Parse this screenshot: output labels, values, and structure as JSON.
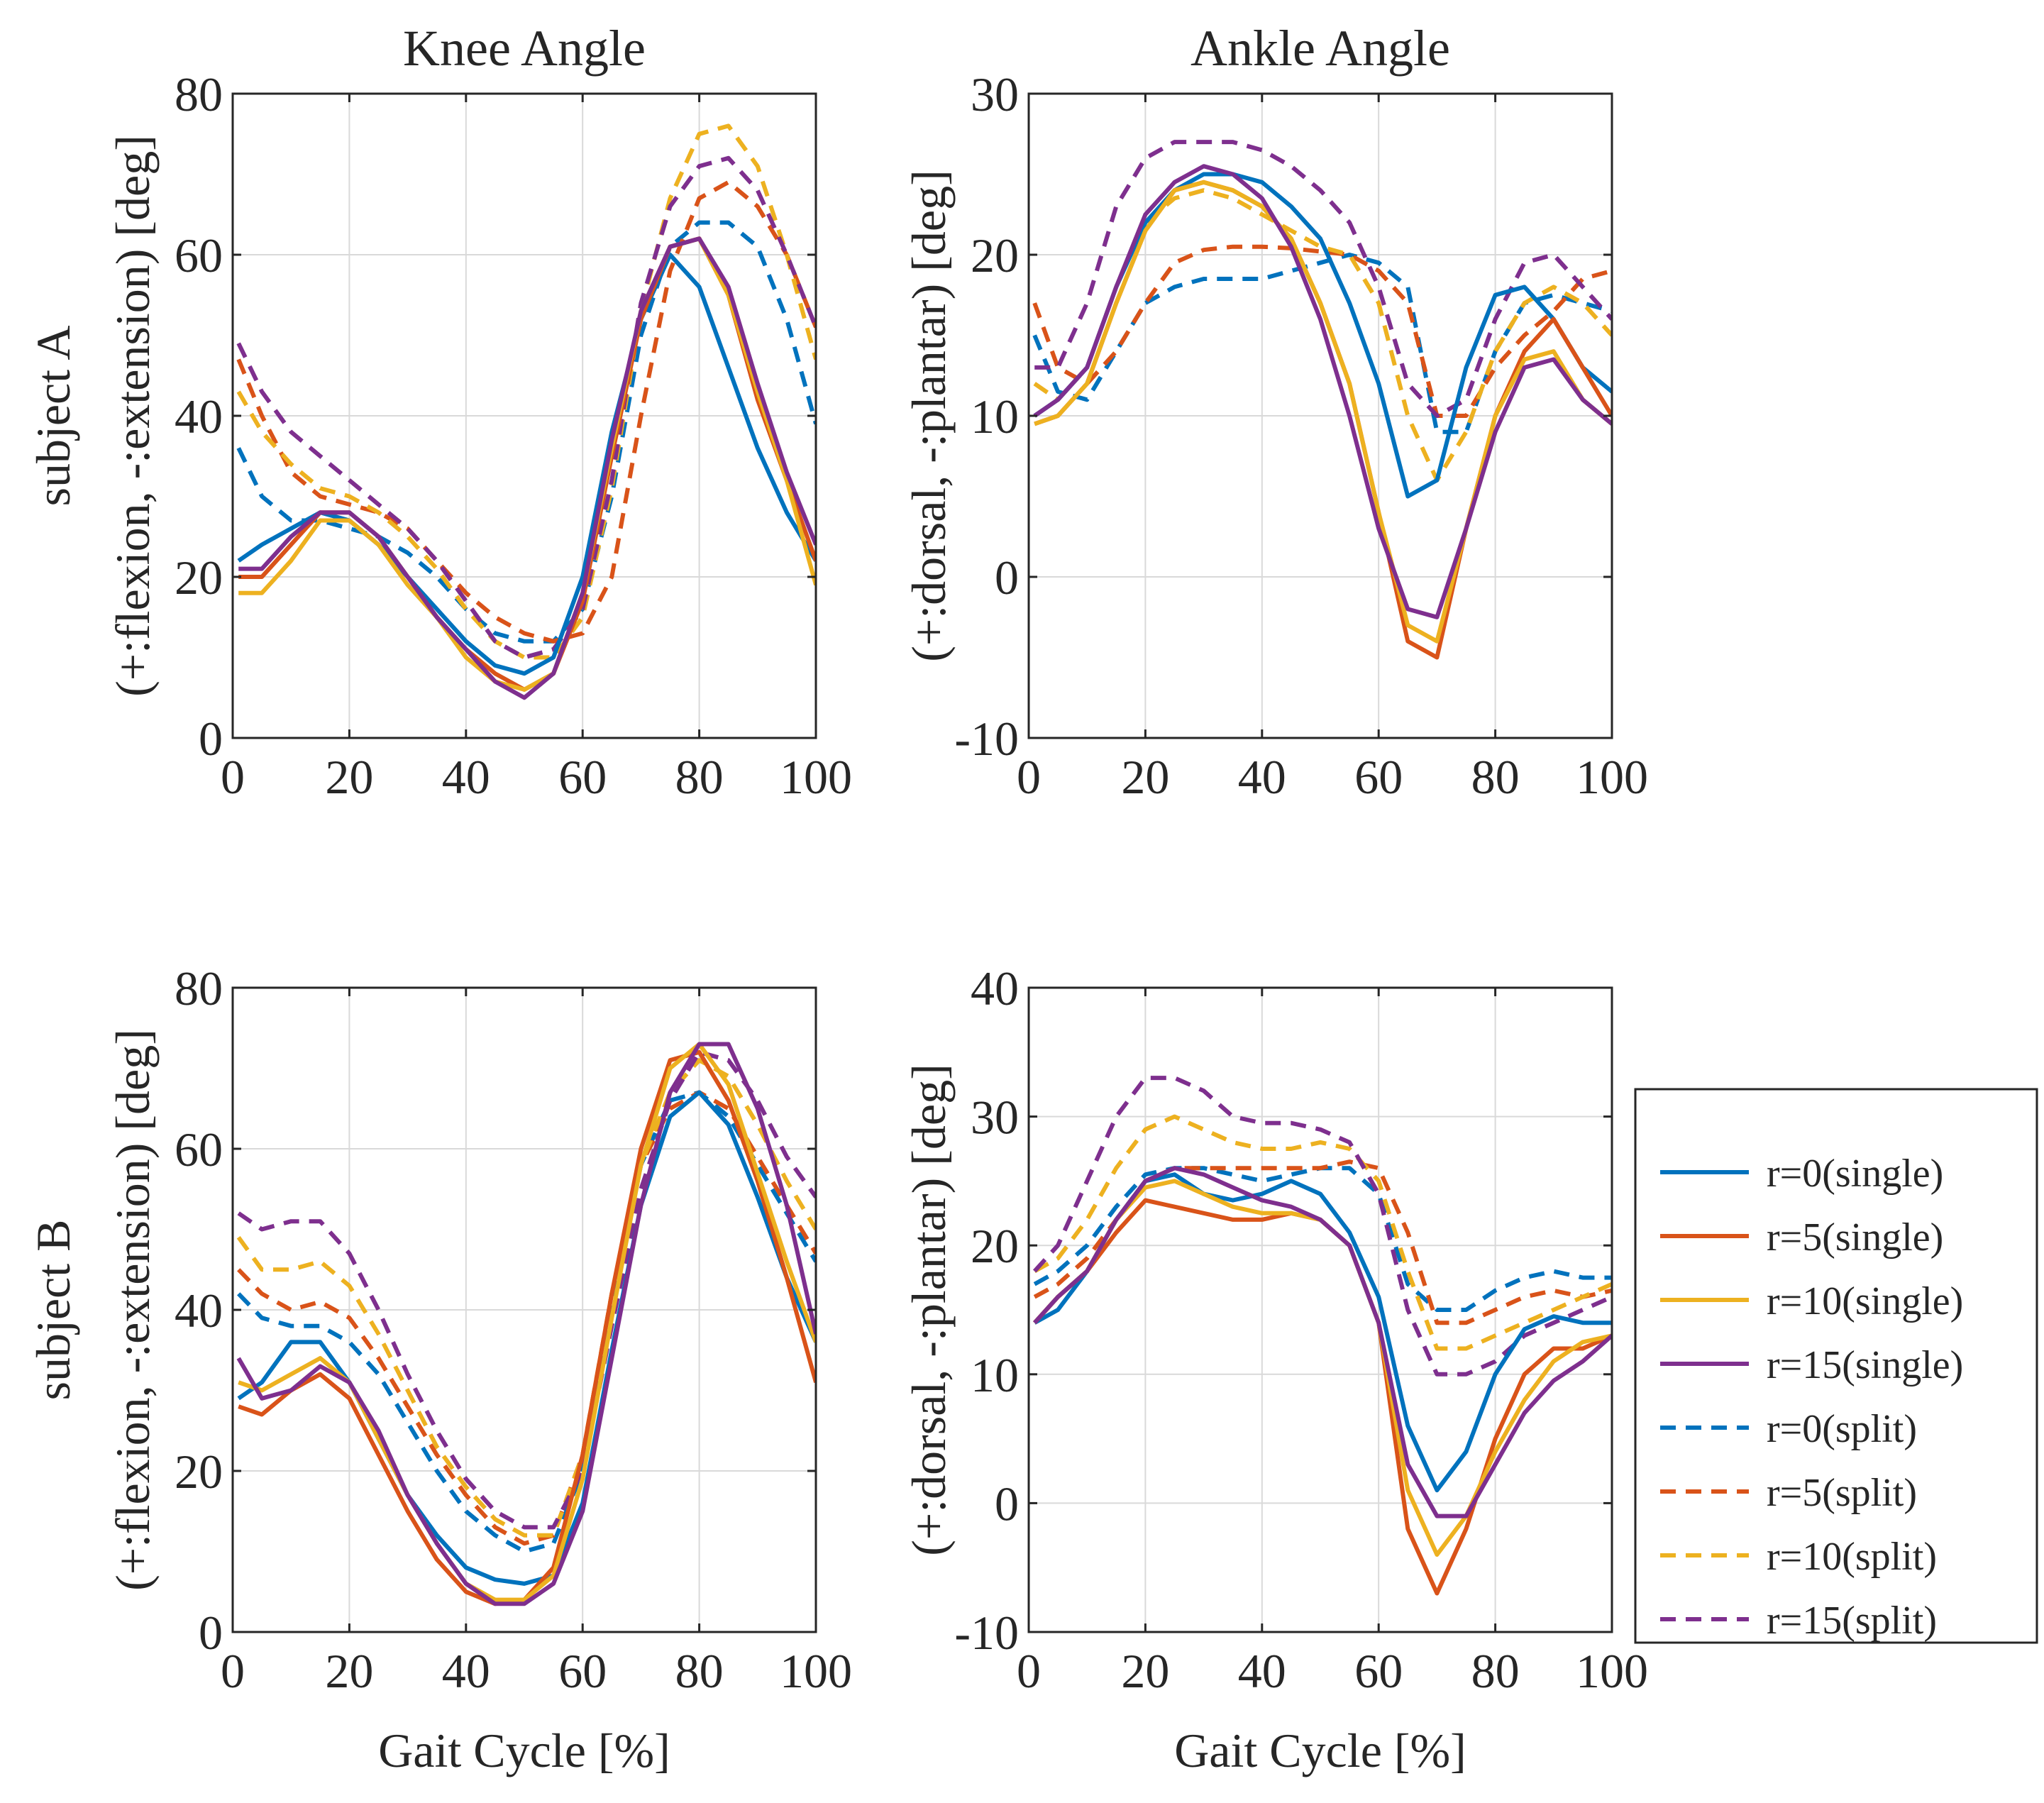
{
  "colors": {
    "r0": "#0072BD",
    "r5": "#D95319",
    "r10": "#EDB120",
    "r15": "#7E2F8E",
    "grid": "#d9d9d9",
    "axis": "#262626"
  },
  "legend": {
    "placement": "right of bottom-right panel",
    "entries": [
      {
        "label": "r=0(single)",
        "color": "#0072BD",
        "style": "solid"
      },
      {
        "label": "r=5(single)",
        "color": "#D95319",
        "style": "solid"
      },
      {
        "label": "r=10(single)",
        "color": "#EDB120",
        "style": "solid"
      },
      {
        "label": "r=15(single)",
        "color": "#7E2F8E",
        "style": "solid"
      },
      {
        "label": "r=0(split)",
        "color": "#0072BD",
        "style": "dashed"
      },
      {
        "label": "r=5(split)",
        "color": "#D95319",
        "style": "dashed"
      },
      {
        "label": "r=10(split)",
        "color": "#EDB120",
        "style": "dashed"
      },
      {
        "label": "r=15(split)",
        "color": "#7E2F8E",
        "style": "dashed"
      }
    ]
  },
  "chart_data": [
    {
      "type": "line",
      "title": "Knee Angle",
      "row_label": "subject A",
      "ylabel": "(+:flexion, -:extension) [deg]",
      "xlabel": "",
      "xlim": [
        0,
        100
      ],
      "ylim": [
        0,
        80
      ],
      "xticks": [
        0,
        20,
        40,
        60,
        80,
        100
      ],
      "yticks": [
        0,
        20,
        40,
        60,
        80
      ],
      "grid": true,
      "x": [
        1,
        5,
        10,
        15,
        20,
        25,
        30,
        35,
        40,
        45,
        50,
        55,
        60,
        65,
        70,
        75,
        80,
        85,
        90,
        95,
        100
      ],
      "series": [
        {
          "name": "r=0(single)",
          "style": "solid",
          "values": [
            22,
            24,
            26,
            28,
            27,
            24,
            20,
            16,
            12,
            9,
            8,
            10,
            20,
            38,
            52,
            60,
            56,
            46,
            36,
            28,
            22
          ]
        },
        {
          "name": "r=5(single)",
          "style": "solid",
          "values": [
            20,
            20,
            24,
            28,
            28,
            25,
            20,
            15,
            11,
            8,
            6,
            8,
            17,
            35,
            52,
            61,
            62,
            55,
            42,
            32,
            22
          ]
        },
        {
          "name": "r=10(single)",
          "style": "solid",
          "values": [
            18,
            18,
            22,
            27,
            27,
            24,
            19,
            15,
            10,
            7,
            6,
            8,
            18,
            36,
            53,
            61,
            62,
            55,
            43,
            32,
            19
          ]
        },
        {
          "name": "r=15(single)",
          "style": "solid",
          "values": [
            21,
            21,
            25,
            28,
            28,
            25,
            20,
            15,
            11,
            7,
            5,
            8,
            18,
            37,
            53,
            61,
            62,
            56,
            44,
            33,
            24
          ]
        },
        {
          "name": "r=0(split)",
          "style": "dashed",
          "values": [
            36,
            30,
            27,
            27,
            26,
            25,
            23,
            20,
            16,
            13,
            12,
            12,
            16,
            30,
            50,
            61,
            64,
            64,
            61,
            52,
            39
          ]
        },
        {
          "name": "r=5(split)",
          "style": "dashed",
          "values": [
            47,
            40,
            33,
            30,
            29,
            28,
            26,
            22,
            18,
            15,
            13,
            12,
            13,
            20,
            40,
            58,
            67,
            69,
            66,
            60,
            51
          ]
        },
        {
          "name": "r=10(split)",
          "style": "dashed",
          "values": [
            43,
            38,
            34,
            31,
            30,
            28,
            25,
            21,
            16,
            12,
            10,
            10,
            15,
            31,
            53,
            67,
            75,
            76,
            71,
            60,
            47
          ]
        },
        {
          "name": "r=15(split)",
          "style": "dashed",
          "values": [
            49,
            43,
            38,
            35,
            32,
            29,
            26,
            22,
            17,
            12,
            10,
            11,
            16,
            32,
            54,
            66,
            71,
            72,
            68,
            60,
            51
          ]
        }
      ]
    },
    {
      "type": "line",
      "title": "Ankle Angle",
      "row_label": "",
      "ylabel": "(+:dorsal, -:plantar) [deg]",
      "xlabel": "",
      "xlim": [
        0,
        100
      ],
      "ylim": [
        -10,
        30
      ],
      "xticks": [
        0,
        20,
        40,
        60,
        80,
        100
      ],
      "yticks": [
        -10,
        0,
        10,
        20,
        30
      ],
      "grid": true,
      "x": [
        1,
        5,
        10,
        15,
        20,
        25,
        30,
        35,
        40,
        45,
        50,
        55,
        60,
        65,
        70,
        75,
        80,
        85,
        90,
        95,
        100
      ],
      "series": [
        {
          "name": "r=0(single)",
          "style": "solid",
          "values": [
            10,
            11,
            13,
            18,
            22,
            24,
            25,
            25,
            24.5,
            23,
            21,
            17,
            12,
            5,
            6,
            13,
            17.5,
            18,
            16,
            13,
            11.5
          ]
        },
        {
          "name": "r=5(single)",
          "style": "solid",
          "values": [
            9.5,
            10,
            12,
            17,
            21.5,
            24,
            24.5,
            24,
            23,
            21,
            17,
            12,
            4,
            -4,
            -5,
            3,
            10,
            14,
            16,
            13,
            10
          ]
        },
        {
          "name": "r=10(single)",
          "style": "solid",
          "values": [
            9.5,
            10,
            12,
            17,
            21.5,
            24,
            24.5,
            24,
            23,
            21,
            17,
            12,
            4,
            -3,
            -4,
            3,
            10,
            13.5,
            14,
            11,
            9.5
          ]
        },
        {
          "name": "r=15(single)",
          "style": "solid",
          "values": [
            10,
            11,
            13,
            18,
            22.5,
            24.5,
            25.5,
            25,
            23.5,
            20.5,
            16,
            10,
            3,
            -2,
            -2.5,
            3,
            9,
            13,
            13.5,
            11,
            9.5
          ]
        },
        {
          "name": "r=0(split)",
          "style": "dashed",
          "values": [
            15,
            11.5,
            11,
            14,
            17,
            18,
            18.5,
            18.5,
            18.5,
            19,
            19.5,
            20,
            19.5,
            18,
            9,
            9,
            14,
            17,
            17.5,
            17,
            16.5
          ]
        },
        {
          "name": "r=5(split)",
          "style": "dashed",
          "values": [
            17,
            13,
            12,
            14,
            17,
            19.5,
            20.3,
            20.5,
            20.5,
            20.4,
            20.2,
            20,
            19,
            17,
            10,
            10,
            13,
            15,
            16.5,
            18.5,
            19
          ]
        },
        {
          "name": "r=10(split)",
          "style": "dashed",
          "values": [
            12,
            11,
            13,
            18,
            22,
            23.5,
            24,
            23.5,
            22.5,
            21.5,
            20.5,
            20,
            17,
            10,
            6,
            9,
            14,
            17,
            18,
            17,
            15
          ]
        },
        {
          "name": "r=15(split)",
          "style": "dashed",
          "values": [
            13,
            13,
            17,
            23,
            26,
            27,
            27,
            27,
            26.5,
            25.5,
            24,
            22,
            18,
            12,
            10,
            11,
            16,
            19.5,
            20,
            18,
            16
          ]
        }
      ]
    },
    {
      "type": "line",
      "title": "",
      "row_label": "subject B",
      "ylabel": "(+:flexion, -:extension) [deg]",
      "xlabel": "Gait Cycle [%]",
      "xlim": [
        0,
        100
      ],
      "ylim": [
        0,
        80
      ],
      "xticks": [
        0,
        20,
        40,
        60,
        80,
        100
      ],
      "yticks": [
        0,
        20,
        40,
        60,
        80
      ],
      "grid": true,
      "x": [
        1,
        5,
        10,
        15,
        20,
        25,
        30,
        35,
        40,
        45,
        50,
        55,
        60,
        65,
        70,
        75,
        80,
        85,
        90,
        95,
        100
      ],
      "series": [
        {
          "name": "r=0(single)",
          "style": "solid",
          "values": [
            29,
            31,
            36,
            36,
            31,
            24,
            17,
            12,
            8,
            6.5,
            6,
            7,
            16,
            35,
            53,
            64,
            67,
            63,
            54,
            44,
            36
          ]
        },
        {
          "name": "r=5(single)",
          "style": "solid",
          "values": [
            28,
            27,
            30,
            32,
            29,
            22,
            15,
            9,
            5,
            3.5,
            4,
            8,
            22,
            42,
            60,
            71,
            72,
            66,
            56,
            44,
            31
          ]
        },
        {
          "name": "r=10(single)",
          "style": "solid",
          "values": [
            31,
            30,
            32,
            34,
            31,
            24,
            17,
            11,
            6,
            4,
            4,
            7,
            19,
            39,
            58,
            70,
            73,
            68,
            57,
            46,
            36
          ]
        },
        {
          "name": "r=15(single)",
          "style": "solid",
          "values": [
            34,
            29,
            30,
            33,
            31,
            25,
            17,
            11,
            6,
            3.5,
            3.5,
            6,
            15,
            34,
            53,
            67,
            73,
            73,
            65,
            53,
            37
          ]
        },
        {
          "name": "r=0(split)",
          "style": "dashed",
          "values": [
            42,
            39,
            38,
            38,
            36,
            32,
            26,
            20,
            15,
            12,
            10,
            11,
            20,
            40,
            58,
            66,
            67,
            64,
            58,
            52,
            46
          ]
        },
        {
          "name": "r=5(split)",
          "style": "dashed",
          "values": [
            45,
            42,
            40,
            41,
            39,
            34,
            28,
            22,
            17,
            13,
            11,
            12,
            22,
            42,
            58,
            65,
            67,
            65,
            59,
            53,
            47
          ]
        },
        {
          "name": "r=10(split)",
          "style": "dashed",
          "values": [
            49,
            45,
            45,
            46,
            43,
            37,
            30,
            23,
            18,
            14,
            12,
            12,
            22,
            42,
            58,
            67,
            71,
            69,
            63,
            56,
            50
          ]
        },
        {
          "name": "r=15(split)",
          "style": "dashed",
          "values": [
            52,
            50,
            51,
            51,
            47,
            40,
            32,
            25,
            19,
            15,
            13,
            13,
            20,
            38,
            55,
            66,
            72,
            71,
            66,
            59,
            54
          ]
        }
      ]
    },
    {
      "type": "line",
      "title": "",
      "row_label": "",
      "ylabel": "(+:dorsal, -:plantar) [deg]",
      "xlabel": "Gait Cycle [%]",
      "xlim": [
        0,
        100
      ],
      "ylim": [
        -10,
        40
      ],
      "xticks": [
        0,
        20,
        40,
        60,
        80,
        100
      ],
      "yticks": [
        -10,
        0,
        10,
        20,
        30,
        40
      ],
      "grid": true,
      "x": [
        1,
        5,
        10,
        15,
        20,
        25,
        30,
        35,
        40,
        45,
        50,
        55,
        60,
        65,
        70,
        75,
        80,
        85,
        90,
        95,
        100
      ],
      "series": [
        {
          "name": "r=0(single)",
          "style": "solid",
          "values": [
            14,
            15,
            18,
            22,
            25,
            25.5,
            24,
            23.5,
            24,
            25,
            24,
            21,
            16,
            6,
            1,
            4,
            10,
            13.5,
            14.5,
            14,
            14
          ]
        },
        {
          "name": "r=5(single)",
          "style": "solid",
          "values": [
            14,
            16,
            18,
            21,
            23.5,
            23,
            22.5,
            22,
            22,
            22.5,
            22,
            20,
            14,
            -2,
            -7,
            -2,
            5,
            10,
            12,
            12,
            13
          ]
        },
        {
          "name": "r=10(single)",
          "style": "solid",
          "values": [
            14,
            16,
            18,
            22,
            24.5,
            25,
            24,
            23,
            22.5,
            22.5,
            22,
            20,
            14,
            1,
            -4,
            -1,
            4,
            8,
            11,
            12.5,
            13
          ]
        },
        {
          "name": "r=15(single)",
          "style": "solid",
          "values": [
            14,
            16,
            18,
            22,
            25,
            26,
            25.5,
            24.5,
            23.5,
            23,
            22,
            20,
            14,
            3,
            -1,
            -1,
            3,
            7,
            9.5,
            11,
            13
          ]
        },
        {
          "name": "r=0(split)",
          "style": "dashed",
          "values": [
            17,
            18,
            20,
            23,
            25.5,
            26,
            26,
            25.5,
            25,
            25.5,
            26,
            26,
            24,
            17,
            15,
            15,
            16.5,
            17.5,
            18,
            17.5,
            17.5
          ]
        },
        {
          "name": "r=5(split)",
          "style": "dashed",
          "values": [
            16,
            17,
            19,
            22,
            25,
            26,
            26,
            26,
            26,
            26,
            26,
            26.5,
            26,
            21,
            14,
            14,
            15,
            16,
            16.5,
            16,
            16.5
          ]
        },
        {
          "name": "r=10(split)",
          "style": "dashed",
          "values": [
            18,
            19,
            22,
            26,
            29,
            30,
            29,
            28,
            27.5,
            27.5,
            28,
            27.5,
            25,
            18,
            12,
            12,
            13,
            14,
            15,
            16,
            17
          ]
        },
        {
          "name": "r=15(split)",
          "style": "dashed",
          "values": [
            18,
            20,
            25,
            30,
            33,
            33,
            32,
            30,
            29.5,
            29.5,
            29,
            28,
            24,
            15,
            10,
            10,
            11,
            13,
            14,
            15,
            16
          ]
        }
      ]
    }
  ]
}
